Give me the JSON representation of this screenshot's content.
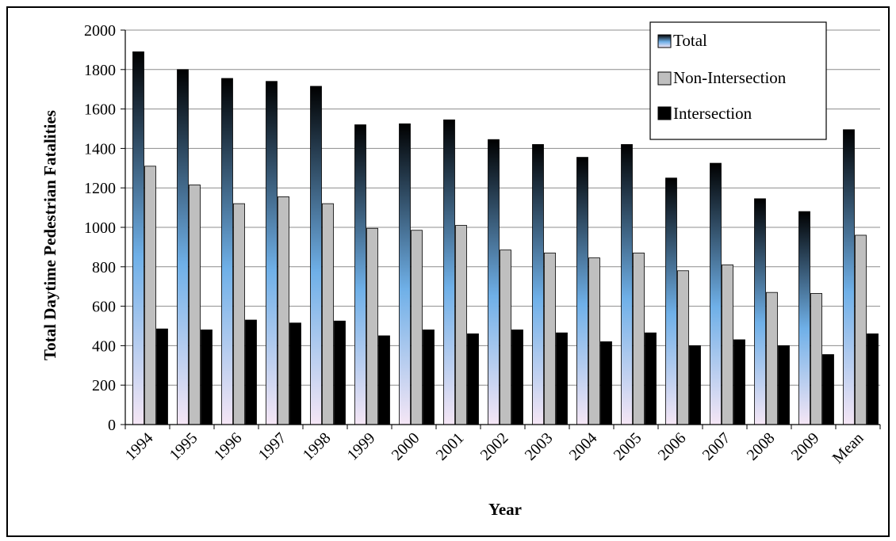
{
  "chart_data": {
    "type": "bar",
    "xlabel": "Year",
    "ylabel": "Total Daytime Pedestrian Fatalities",
    "ylim": [
      0,
      2000
    ],
    "yticks": [
      0,
      200,
      400,
      600,
      800,
      1000,
      1200,
      1400,
      1600,
      1800,
      2000
    ],
    "grid": true,
    "legend_position": "top-right",
    "categories": [
      "1994",
      "1995",
      "1996",
      "1997",
      "1998",
      "1999",
      "2000",
      "2001",
      "2002",
      "2003",
      "2004",
      "2005",
      "2006",
      "2007",
      "2008",
      "2009",
      "Mean"
    ],
    "series": [
      {
        "name": "Total",
        "color_top": "#000000",
        "color_mid": "#6fb0e8",
        "color_bottom": "#f5e6f5",
        "values": [
          1890,
          1800,
          1755,
          1740,
          1715,
          1520,
          1525,
          1545,
          1445,
          1420,
          1355,
          1420,
          1250,
          1325,
          1145,
          1080,
          1495
        ]
      },
      {
        "name": "Non-Intersection",
        "color": "#bfbfbf",
        "values": [
          1310,
          1215,
          1120,
          1155,
          1120,
          995,
          985,
          1010,
          885,
          870,
          845,
          870,
          780,
          810,
          670,
          665,
          960
        ]
      },
      {
        "name": "Intersection",
        "color": "#000000",
        "values": [
          485,
          480,
          530,
          515,
          525,
          450,
          480,
          460,
          480,
          465,
          420,
          465,
          400,
          430,
          400,
          355,
          460
        ]
      }
    ]
  }
}
